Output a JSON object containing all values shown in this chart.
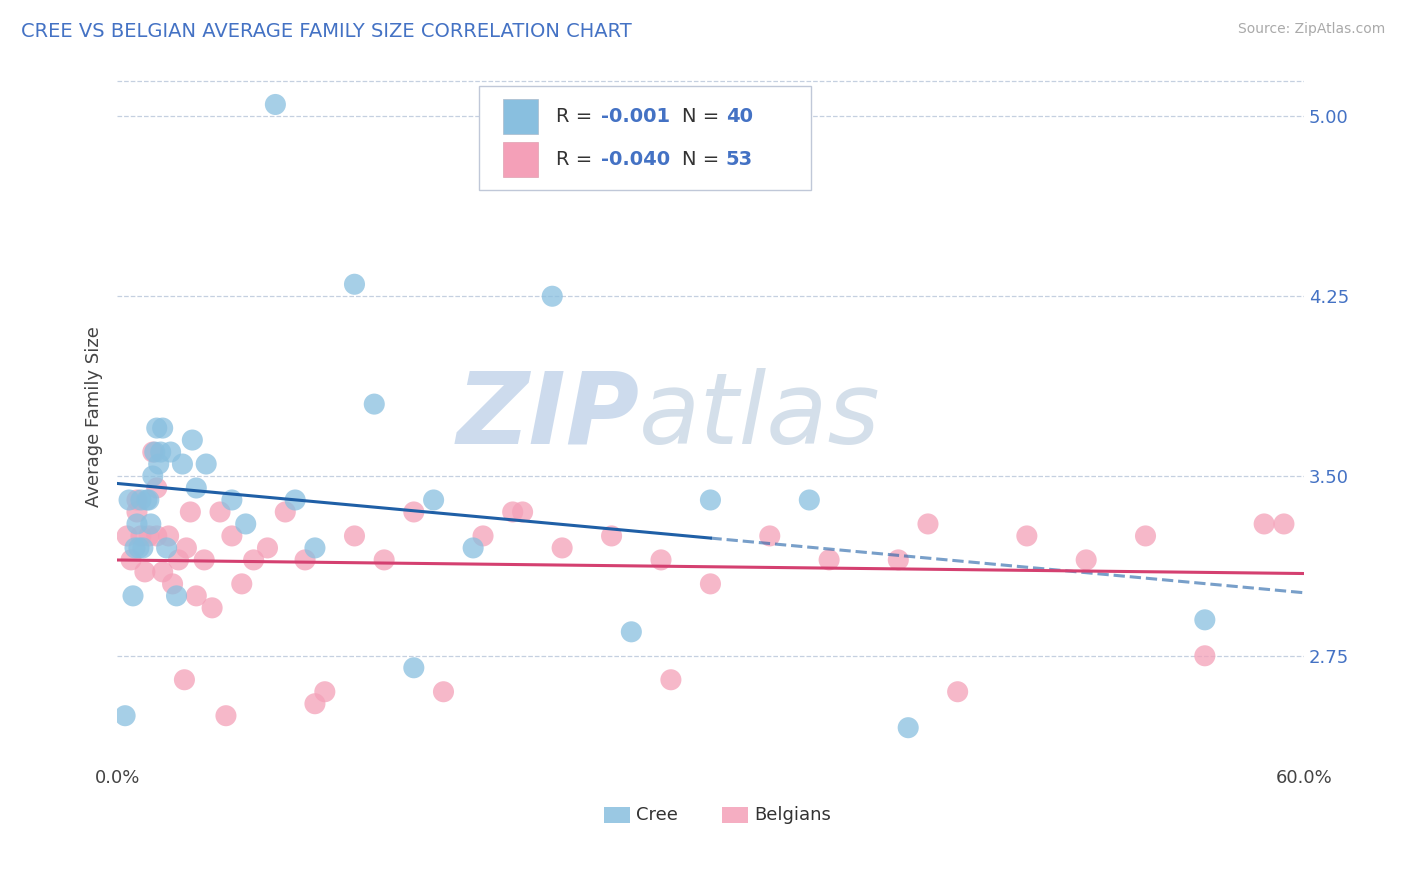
{
  "title": "CREE VS BELGIAN AVERAGE FAMILY SIZE CORRELATION CHART",
  "source": "Source: ZipAtlas.com",
  "ylabel": "Average Family Size",
  "yticks": [
    2.75,
    3.5,
    4.25,
    5.0
  ],
  "xmin": 0.0,
  "xmax": 0.6,
  "ymin": 2.3,
  "ymax": 5.2,
  "cree_color": "#89bfdf",
  "belgian_color": "#f4a0b8",
  "cree_line_color": "#1f5fa6",
  "belgian_line_color": "#d44070",
  "cree_R": -0.001,
  "cree_N": 40,
  "belgian_R": -0.04,
  "belgian_N": 53,
  "watermark_color": "#cddcec",
  "background_color": "#ffffff",
  "grid_color": "#c5d0e0",
  "title_color": "#4472c4",
  "right_tick_color": "#4472c4",
  "legend_text_color": "#333333",
  "legend_value_color": "#4472c4",
  "cree_x": [
    0.004,
    0.006,
    0.008,
    0.009,
    0.01,
    0.011,
    0.012,
    0.013,
    0.015,
    0.016,
    0.017,
    0.018,
    0.019,
    0.02,
    0.021,
    0.022,
    0.023,
    0.025,
    0.027,
    0.03,
    0.033,
    0.038,
    0.04,
    0.045,
    0.058,
    0.065,
    0.08,
    0.09,
    0.1,
    0.12,
    0.13,
    0.15,
    0.16,
    0.18,
    0.22,
    0.26,
    0.3,
    0.35,
    0.4,
    0.55
  ],
  "cree_y": [
    2.5,
    3.4,
    3.0,
    3.2,
    3.3,
    3.2,
    3.4,
    3.2,
    3.4,
    3.4,
    3.3,
    3.5,
    3.6,
    3.7,
    3.55,
    3.6,
    3.7,
    3.2,
    3.6,
    3.0,
    3.55,
    3.65,
    3.45,
    3.55,
    3.4,
    3.3,
    5.05,
    3.4,
    3.2,
    4.3,
    3.8,
    2.7,
    3.4,
    3.2,
    4.25,
    2.85,
    3.4,
    3.4,
    2.45,
    2.9
  ],
  "belgian_x": [
    0.005,
    0.007,
    0.01,
    0.012,
    0.014,
    0.016,
    0.018,
    0.02,
    0.023,
    0.026,
    0.028,
    0.031,
    0.034,
    0.037,
    0.04,
    0.044,
    0.048,
    0.052,
    0.058,
    0.063,
    0.069,
    0.076,
    0.085,
    0.095,
    0.105,
    0.12,
    0.135,
    0.15,
    0.165,
    0.185,
    0.205,
    0.225,
    0.25,
    0.275,
    0.3,
    0.33,
    0.36,
    0.395,
    0.425,
    0.46,
    0.49,
    0.52,
    0.55,
    0.58,
    0.01,
    0.02,
    0.035,
    0.055,
    0.1,
    0.2,
    0.28,
    0.41,
    0.59
  ],
  "belgian_y": [
    3.25,
    3.15,
    3.35,
    3.25,
    3.1,
    3.25,
    3.6,
    3.45,
    3.1,
    3.25,
    3.05,
    3.15,
    2.65,
    3.35,
    3.0,
    3.15,
    2.95,
    3.35,
    3.25,
    3.05,
    3.15,
    3.2,
    3.35,
    3.15,
    2.6,
    3.25,
    3.15,
    3.35,
    2.6,
    3.25,
    3.35,
    3.2,
    3.25,
    3.15,
    3.05,
    3.25,
    3.15,
    3.15,
    2.6,
    3.25,
    3.15,
    3.25,
    2.75,
    3.3,
    3.4,
    3.25,
    3.2,
    2.5,
    2.55,
    3.35,
    2.65,
    3.3,
    3.3
  ]
}
